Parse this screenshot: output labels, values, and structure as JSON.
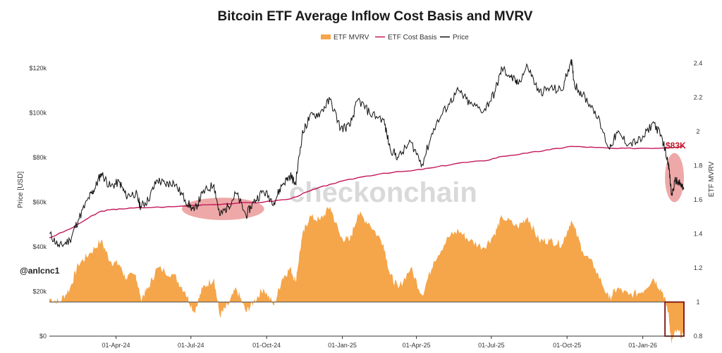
{
  "chart_data": {
    "type": "line",
    "title": "Bitcoin ETF Average Inflow Cost Basis and MVRV",
    "legend": [
      {
        "name": "ETF MVRV",
        "color": "#f5a54a",
        "kind": "area"
      },
      {
        "name": "ETF Cost Basis",
        "color": "#c2185b",
        "kind": "line"
      },
      {
        "name": "Price",
        "color": "#111111",
        "kind": "line"
      }
    ],
    "legend_position": "top-center",
    "ylabel": "Price [USD]",
    "y2label": "ETF MVRV",
    "ylim": [
      0,
      126000
    ],
    "y2lim": [
      0.8,
      2.45
    ],
    "y_ticks": [
      0,
      20000,
      40000,
      60000,
      80000,
      100000,
      120000
    ],
    "y_tick_labels": [
      "$0",
      "$20k",
      "$40k",
      "$60k",
      "$80k",
      "$100k",
      "$120k"
    ],
    "y2_ticks": [
      0.8,
      1,
      1.2,
      1.4,
      1.6,
      1.8,
      2,
      2.2,
      2.4
    ],
    "y2_tick_labels": [
      "0.8",
      "1",
      "1.2",
      "1.4",
      "1.6",
      "1.8",
      "2",
      "2.2",
      "2.4"
    ],
    "x_range": [
      "2024-01-11",
      "2026-02-20"
    ],
    "x_ticks": [
      "2024-04-01",
      "2024-07-01",
      "2024-10-01",
      "2025-01-01",
      "2025-04-01",
      "2025-07-01",
      "2025-10-01",
      "2026-01-01"
    ],
    "x_tick_labels": [
      "01-Apr-24",
      "01-Jul-24",
      "01-Oct-24",
      "01-Jan-25",
      "01-Apr-25",
      "01-Jul-25",
      "01-Oct-25",
      "01-Jan-26"
    ],
    "mvrv_baseline": 1,
    "series": [
      {
        "name": "Price",
        "axis": "left",
        "x": [
          "2024-01-11",
          "2024-01-23",
          "2024-02-05",
          "2024-02-15",
          "2024-02-28",
          "2024-03-06",
          "2024-03-14",
          "2024-03-25",
          "2024-04-05",
          "2024-04-13",
          "2024-04-25",
          "2024-05-01",
          "2024-05-10",
          "2024-05-21",
          "2024-05-31",
          "2024-06-10",
          "2024-06-24",
          "2024-07-05",
          "2024-07-15",
          "2024-07-29",
          "2024-08-05",
          "2024-08-15",
          "2024-08-25",
          "2024-09-06",
          "2024-09-15",
          "2024-09-27",
          "2024-10-10",
          "2024-10-20",
          "2024-10-30",
          "2024-11-05",
          "2024-11-13",
          "2024-11-22",
          "2024-12-05",
          "2024-12-17",
          "2024-12-30",
          "2025-01-10",
          "2025-01-20",
          "2025-02-03",
          "2025-02-20",
          "2025-02-28",
          "2025-03-10",
          "2025-03-25",
          "2025-04-08",
          "2025-04-22",
          "2025-05-10",
          "2025-05-22",
          "2025-06-05",
          "2025-06-22",
          "2025-07-05",
          "2025-07-14",
          "2025-07-25",
          "2025-08-02",
          "2025-08-14",
          "2025-08-28",
          "2025-09-10",
          "2025-09-25",
          "2025-10-06",
          "2025-10-10",
          "2025-10-20",
          "2025-11-04",
          "2025-11-21",
          "2025-12-01",
          "2025-12-15",
          "2025-12-31",
          "2026-01-14",
          "2026-01-25",
          "2026-02-01",
          "2026-02-05",
          "2026-02-10",
          "2026-02-15",
          "2026-02-20"
        ],
        "values": [
          46000,
          40000,
          43000,
          52000,
          62000,
          66000,
          73000,
          67000,
          69000,
          63000,
          64000,
          58000,
          61000,
          70000,
          68000,
          69000,
          61000,
          56000,
          64000,
          68000,
          54000,
          58000,
          64000,
          54000,
          60000,
          65000,
          60000,
          68000,
          72000,
          68000,
          90000,
          98000,
          100000,
          106000,
          93000,
          94000,
          106000,
          100000,
          97000,
          84000,
          80000,
          87000,
          77000,
          93000,
          104000,
          110000,
          104000,
          101000,
          109000,
          120000,
          116000,
          113000,
          121000,
          109000,
          111000,
          110000,
          124000,
          113000,
          108000,
          101000,
          84000,
          91000,
          86000,
          88000,
          96000,
          88000,
          78000,
          63000,
          70000,
          68000,
          66000
        ]
      },
      {
        "name": "ETF Cost Basis",
        "axis": "left",
        "x": [
          "2024-01-11",
          "2024-02-05",
          "2024-02-28",
          "2024-03-14",
          "2024-04-05",
          "2024-05-01",
          "2024-06-10",
          "2024-07-15",
          "2024-08-25",
          "2024-09-27",
          "2024-10-30",
          "2024-11-22",
          "2024-12-17",
          "2025-01-20",
          "2025-02-20",
          "2025-03-25",
          "2025-04-22",
          "2025-05-22",
          "2025-06-22",
          "2025-07-14",
          "2025-08-14",
          "2025-09-10",
          "2025-10-06",
          "2025-11-04",
          "2025-12-01",
          "2025-12-31",
          "2026-01-25",
          "2026-02-20"
        ],
        "values": [
          44000,
          48000,
          53000,
          56000,
          57000,
          57500,
          58000,
          58800,
          59500,
          60000,
          61500,
          65000,
          68000,
          71000,
          73000,
          74000,
          75500,
          77500,
          78500,
          80500,
          82000,
          83500,
          85000,
          84500,
          84000,
          84200,
          84300,
          85000
        ]
      },
      {
        "name": "ETF MVRV",
        "axis": "right",
        "x": [
          "2024-01-11",
          "2024-01-23",
          "2024-02-05",
          "2024-02-15",
          "2024-02-28",
          "2024-03-14",
          "2024-03-25",
          "2024-04-05",
          "2024-04-13",
          "2024-04-25",
          "2024-05-01",
          "2024-05-10",
          "2024-05-21",
          "2024-06-10",
          "2024-06-24",
          "2024-07-05",
          "2024-07-15",
          "2024-07-29",
          "2024-08-05",
          "2024-08-15",
          "2024-08-25",
          "2024-09-06",
          "2024-09-15",
          "2024-09-27",
          "2024-10-10",
          "2024-10-20",
          "2024-10-30",
          "2024-11-05",
          "2024-11-13",
          "2024-11-22",
          "2024-12-05",
          "2024-12-17",
          "2024-12-30",
          "2025-01-10",
          "2025-01-20",
          "2025-02-03",
          "2025-02-20",
          "2025-02-28",
          "2025-03-10",
          "2025-03-25",
          "2025-04-08",
          "2025-04-22",
          "2025-05-10",
          "2025-05-22",
          "2025-06-05",
          "2025-06-22",
          "2025-07-05",
          "2025-07-14",
          "2025-08-02",
          "2025-08-14",
          "2025-08-28",
          "2025-09-10",
          "2025-09-25",
          "2025-10-06",
          "2025-10-20",
          "2025-11-04",
          "2025-11-21",
          "2025-12-01",
          "2025-12-15",
          "2025-12-31",
          "2026-01-14",
          "2026-01-25",
          "2026-02-01",
          "2026-02-05",
          "2026-02-10",
          "2026-02-20"
        ],
        "values": [
          1.02,
          1.0,
          1.08,
          1.22,
          1.28,
          1.36,
          1.24,
          1.22,
          1.14,
          1.16,
          1.02,
          1.08,
          1.2,
          1.16,
          1.06,
          0.94,
          1.08,
          1.14,
          0.92,
          0.98,
          1.08,
          0.94,
          1.0,
          1.08,
          0.98,
          1.14,
          1.2,
          1.12,
          1.38,
          1.5,
          1.48,
          1.56,
          1.38,
          1.36,
          1.52,
          1.46,
          1.34,
          1.16,
          1.08,
          1.2,
          1.04,
          1.24,
          1.38,
          1.42,
          1.36,
          1.32,
          1.4,
          1.5,
          1.44,
          1.5,
          1.36,
          1.36,
          1.34,
          1.48,
          1.3,
          1.2,
          1.02,
          1.08,
          1.04,
          1.06,
          1.14,
          1.06,
          0.94,
          0.76,
          0.83,
          0.8
        ]
      }
    ],
    "annotations": [
      {
        "text": "$83K",
        "color": "#c0152a"
      },
      {
        "text": "@anlcnc1"
      },
      {
        "text": "checkonchain",
        "kind": "watermark"
      }
    ],
    "highlights": [
      {
        "kind": "ellipse",
        "x_from": "2024-06-20",
        "x_to": "2024-09-28",
        "y_from": 52000,
        "y_to": 62000,
        "color": "#e06060"
      },
      {
        "kind": "ellipse",
        "x_from": "2026-01-28",
        "x_to": "2026-02-20",
        "y_from": 60000,
        "y_to": 82000,
        "color": "#e06060"
      },
      {
        "kind": "rectangle",
        "x_from": "2026-01-28",
        "x_to": "2026-02-20",
        "y2_from": 0.8,
        "y2_to": 1.0,
        "color": "#7a1010"
      }
    ]
  }
}
